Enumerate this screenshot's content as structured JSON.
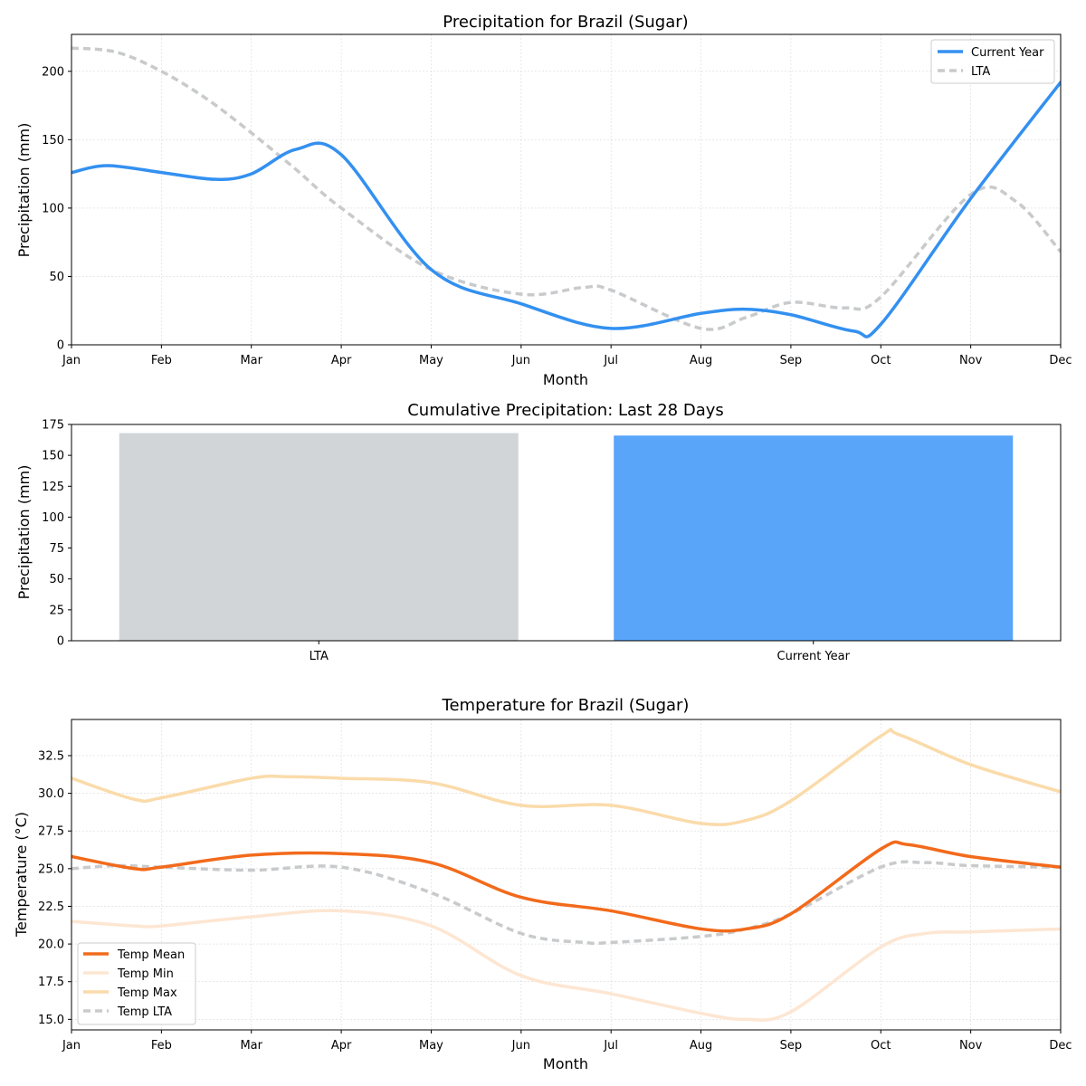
{
  "colors": {
    "current": "#3390f0",
    "lta": "#c8cacc",
    "bar_lta": "#d1d5d8",
    "bar_current": "#58a5fa",
    "temp_mean": "#f26a1b",
    "temp_min": "#fde6d2",
    "temp_max": "#fadbaa",
    "temp_lta": "#c8cacc"
  },
  "chart_data": [
    {
      "type": "line",
      "title": "Precipitation for Brazil (Sugar)",
      "xlabel": "Month",
      "ylabel": "Precipitation (mm)",
      "xlim": [
        0,
        11
      ],
      "ylim": [
        0,
        227
      ],
      "yticks": [
        0,
        50,
        100,
        150,
        200
      ],
      "xticklabels": [
        "Jan",
        "Feb",
        "Mar",
        "Apr",
        "May",
        "Jun",
        "Jul",
        "Aug",
        "Sep",
        "Oct",
        "Nov",
        "Dec"
      ],
      "grid": true,
      "legend": "top-right",
      "series": [
        {
          "name": "Current Year",
          "x": [
            0,
            0.4,
            1,
            1.6,
            2,
            2.5,
            3,
            4,
            5,
            6,
            7,
            7.5,
            8,
            8.7,
            9,
            10,
            11
          ],
          "y": [
            126,
            131,
            126,
            121,
            125,
            143,
            139,
            55,
            30,
            12,
            23,
            26,
            22,
            10,
            15,
            107,
            192
          ]
        },
        {
          "name": "LTA",
          "x": [
            0,
            0.5,
            1,
            1.5,
            2,
            2.5,
            3,
            4,
            5,
            5.7,
            6,
            7,
            7.5,
            8,
            8.6,
            9,
            10,
            10.5,
            11
          ],
          "y": [
            217,
            214,
            200,
            180,
            155,
            128,
            100,
            55,
            37,
            42,
            40,
            12,
            20,
            31,
            27,
            35,
            110,
            105,
            68
          ]
        }
      ]
    },
    {
      "type": "bar",
      "title": "Cumulative Precipitation: Last 28 Days",
      "ylabel": "Precipitation (mm)",
      "categories": [
        "LTA",
        "Current Year"
      ],
      "values": [
        168,
        166
      ],
      "ylim": [
        0,
        175
      ],
      "yticks": [
        0,
        25,
        50,
        75,
        100,
        125,
        150,
        175
      ]
    },
    {
      "type": "line",
      "title": "Temperature for Brazil (Sugar)",
      "xlabel": "Month",
      "ylabel": "Temperature (°C)",
      "xlim": [
        0,
        11
      ],
      "ylim": [
        14.3,
        34.9
      ],
      "yticks": [
        15.0,
        17.5,
        20.0,
        22.5,
        25.0,
        27.5,
        30.0,
        32.5
      ],
      "xticklabels": [
        "Jan",
        "Feb",
        "Mar",
        "Apr",
        "May",
        "Jun",
        "Jul",
        "Aug",
        "Sep",
        "Oct",
        "Nov",
        "Dec"
      ],
      "grid": true,
      "legend": "lower-left",
      "series": [
        {
          "name": "Temp Mean",
          "x": [
            0,
            0.7,
            1,
            2,
            3,
            4,
            5,
            6,
            7,
            7.5,
            8,
            9,
            9.3,
            10,
            11
          ],
          "y": [
            25.8,
            25.0,
            25.1,
            25.9,
            26.0,
            25.4,
            23.1,
            22.2,
            21.0,
            21.0,
            22.0,
            26.3,
            26.6,
            25.8,
            25.1
          ]
        },
        {
          "name": "Temp Min",
          "x": [
            0,
            0.7,
            1,
            2,
            3,
            4,
            5,
            6,
            7,
            7.5,
            8,
            9,
            9.5,
            10,
            11
          ],
          "y": [
            21.5,
            21.2,
            21.2,
            21.8,
            22.2,
            21.2,
            17.9,
            16.7,
            15.4,
            15.0,
            15.5,
            19.8,
            20.7,
            20.8,
            21.0
          ],
          "color": "#fde6d2"
        },
        {
          "name": "Temp Max",
          "x": [
            0,
            0.7,
            1,
            2,
            2.4,
            3,
            4,
            5,
            6,
            7,
            7.5,
            8,
            9,
            9.2,
            10,
            11
          ],
          "y": [
            31.0,
            29.6,
            29.7,
            31.0,
            31.1,
            31.0,
            30.7,
            29.2,
            29.2,
            28.0,
            28.2,
            29.5,
            33.8,
            33.9,
            31.9,
            30.1
          ]
        },
        {
          "name": "Temp LTA",
          "x": [
            0,
            0.5,
            1,
            2,
            3,
            4,
            5,
            5.7,
            6,
            7,
            7.5,
            8,
            9,
            9.5,
            10,
            11
          ],
          "y": [
            25.0,
            25.2,
            25.1,
            24.9,
            25.1,
            23.4,
            20.7,
            20.1,
            20.1,
            20.5,
            21.0,
            22.0,
            25.1,
            25.4,
            25.2,
            25.1
          ]
        }
      ]
    }
  ]
}
